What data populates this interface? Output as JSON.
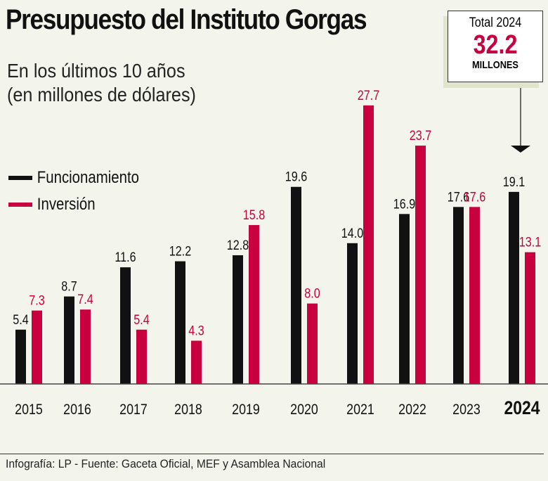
{
  "title": "Presupuesto del Instituto Gorgas",
  "subtitle_line1": "En los últimos 10 años",
  "subtitle_line2": "(en millones de dólares)",
  "total_box": {
    "label": "Total 2024",
    "value": "32.2",
    "unit": "MILLONES"
  },
  "footer": "Infografía: LP - Fuente: Gaceta  Oficial, MEF y Asamblea Nacional",
  "colors": {
    "funcionamiento": "#111111",
    "inversion": "#c8003f",
    "background": "#f3f5ec"
  },
  "chart_data": {
    "type": "bar",
    "categories": [
      "2015",
      "2016",
      "2017",
      "2018",
      "2019",
      "2020",
      "2021",
      "2022",
      "2023",
      "2024"
    ],
    "highlight_category": "2024",
    "series": [
      {
        "name": "Funcionamiento",
        "values": [
          5.4,
          8.7,
          11.6,
          12.2,
          12.8,
          19.6,
          14.0,
          16.9,
          17.6,
          19.1
        ]
      },
      {
        "name": "Inversión",
        "values": [
          7.3,
          7.4,
          5.4,
          4.3,
          15.8,
          8.0,
          27.7,
          23.7,
          17.6,
          13.1
        ]
      }
    ],
    "ylim": [
      0,
      29
    ],
    "grid": false,
    "legend_placement": "left"
  }
}
